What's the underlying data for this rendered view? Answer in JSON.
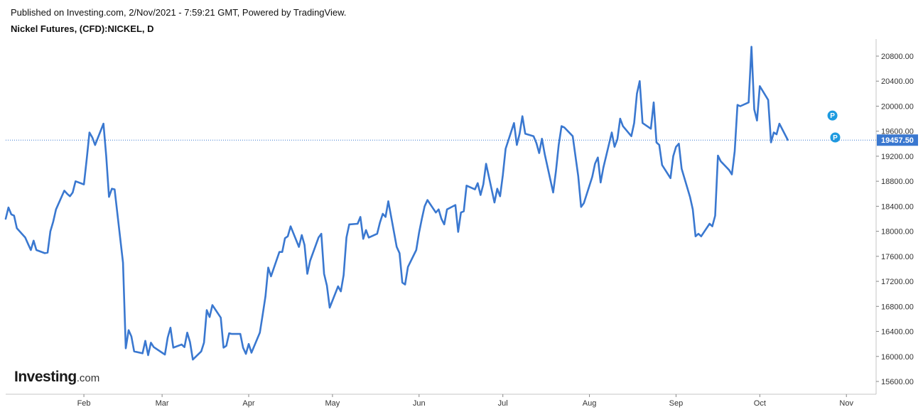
{
  "header": {
    "published": "Published on Investing.com, 2/Nov/2021 - 7:59:21 GMT, Powered by TradingView.",
    "symbol": "Nickel Futures, (CFD):NICKEL, D"
  },
  "logo": {
    "brand": "Investing",
    "suffix": ".com"
  },
  "colors": {
    "line": "#3a78d0",
    "price_label_bg": "#3a78d0",
    "marker": "#1e9be0",
    "axis": "#c4c4c4"
  },
  "chart_data": {
    "type": "line",
    "title": "Nickel Futures, (CFD):NICKEL, D",
    "xlabel": "",
    "ylabel": "",
    "ylim": [
      15400,
      21100
    ],
    "y_ticks": [
      15600,
      16000,
      16400,
      16800,
      17200,
      17600,
      18000,
      18400,
      18800,
      19200,
      19600,
      20000,
      20400,
      20800
    ],
    "y_tick_labels": [
      "15600.00",
      "16000.00",
      "16400.00",
      "16800.00",
      "17200.00",
      "17600.00",
      "18000.00",
      "18400.00",
      "18800.00",
      "19200.00",
      "19600.00",
      "20000.00",
      "20400.00",
      "20800.00"
    ],
    "x_ticks": [
      "2021-02-01",
      "2021-03-01",
      "2021-04-01",
      "2021-05-01",
      "2021-06-01",
      "2021-07-01",
      "2021-08-01",
      "2021-09-01",
      "2021-10-01",
      "2021-11-01"
    ],
    "x_tick_labels": [
      "Feb",
      "Mar",
      "Apr",
      "May",
      "Jun",
      "Jul",
      "Aug",
      "Sep",
      "Oct",
      "Nov"
    ],
    "x_range": [
      "2021-01-04",
      "2021-11-04"
    ],
    "last_price": 19457.5,
    "last_price_label": "19457.50",
    "markers": [
      {
        "date": "2021-10-27",
        "value": 19850,
        "label": "P"
      },
      {
        "date": "2021-10-28",
        "value": 19500,
        "label": "P"
      }
    ],
    "series": [
      {
        "values": [
          [
            "2021-01-04",
            18200
          ],
          [
            "2021-01-05",
            18380
          ],
          [
            "2021-01-06",
            18270
          ],
          [
            "2021-01-07",
            18250
          ],
          [
            "2021-01-08",
            18050
          ],
          [
            "2021-01-11",
            17900
          ],
          [
            "2021-01-12",
            17800
          ],
          [
            "2021-01-13",
            17700
          ],
          [
            "2021-01-14",
            17850
          ],
          [
            "2021-01-15",
            17700
          ],
          [
            "2021-01-18",
            17650
          ],
          [
            "2021-01-19",
            17660
          ],
          [
            "2021-01-20",
            18000
          ],
          [
            "2021-01-21",
            18150
          ],
          [
            "2021-01-22",
            18350
          ],
          [
            "2021-01-25",
            18650
          ],
          [
            "2021-01-26",
            18600
          ],
          [
            "2021-01-27",
            18560
          ],
          [
            "2021-01-28",
            18620
          ],
          [
            "2021-01-29",
            18800
          ],
          [
            "2021-02-01",
            18750
          ],
          [
            "2021-02-02",
            19150
          ],
          [
            "2021-02-03",
            19580
          ],
          [
            "2021-02-04",
            19500
          ],
          [
            "2021-02-05",
            19380
          ],
          [
            "2021-02-08",
            19720
          ],
          [
            "2021-02-09",
            19200
          ],
          [
            "2021-02-10",
            18550
          ],
          [
            "2021-02-11",
            18680
          ],
          [
            "2021-02-12",
            18670
          ],
          [
            "2021-02-15",
            17500
          ],
          [
            "2021-02-16",
            16130
          ],
          [
            "2021-02-17",
            16420
          ],
          [
            "2021-02-18",
            16320
          ],
          [
            "2021-02-19",
            16080
          ],
          [
            "2021-02-22",
            16050
          ],
          [
            "2021-02-23",
            16250
          ],
          [
            "2021-02-24",
            16020
          ],
          [
            "2021-02-25",
            16220
          ],
          [
            "2021-02-26",
            16150
          ],
          [
            "2021-03-01",
            16060
          ],
          [
            "2021-03-02",
            16030
          ],
          [
            "2021-03-03",
            16300
          ],
          [
            "2021-03-04",
            16460
          ],
          [
            "2021-03-05",
            16140
          ],
          [
            "2021-03-08",
            16190
          ],
          [
            "2021-03-09",
            16150
          ],
          [
            "2021-03-10",
            16380
          ],
          [
            "2021-03-11",
            16230
          ],
          [
            "2021-03-12",
            15950
          ],
          [
            "2021-03-15",
            16080
          ],
          [
            "2021-03-16",
            16220
          ],
          [
            "2021-03-17",
            16740
          ],
          [
            "2021-03-18",
            16630
          ],
          [
            "2021-03-19",
            16820
          ],
          [
            "2021-03-22",
            16620
          ],
          [
            "2021-03-23",
            16140
          ],
          [
            "2021-03-24",
            16170
          ],
          [
            "2021-03-25",
            16370
          ],
          [
            "2021-03-26",
            16360
          ],
          [
            "2021-03-29",
            16360
          ],
          [
            "2021-03-30",
            16140
          ],
          [
            "2021-03-31",
            16040
          ],
          [
            "2021-04-01",
            16200
          ],
          [
            "2021-04-02",
            16060
          ],
          [
            "2021-04-05",
            16380
          ],
          [
            "2021-04-06",
            16660
          ],
          [
            "2021-04-07",
            16960
          ],
          [
            "2021-04-08",
            17420
          ],
          [
            "2021-04-09",
            17280
          ],
          [
            "2021-04-12",
            17670
          ],
          [
            "2021-04-13",
            17670
          ],
          [
            "2021-04-14",
            17890
          ],
          [
            "2021-04-15",
            17920
          ],
          [
            "2021-04-16",
            18080
          ],
          [
            "2021-04-19",
            17750
          ],
          [
            "2021-04-20",
            17940
          ],
          [
            "2021-04-21",
            17780
          ],
          [
            "2021-04-22",
            17320
          ],
          [
            "2021-04-23",
            17530
          ],
          [
            "2021-04-26",
            17900
          ],
          [
            "2021-04-27",
            17960
          ],
          [
            "2021-04-28",
            17320
          ],
          [
            "2021-04-29",
            17130
          ],
          [
            "2021-04-30",
            16780
          ],
          [
            "2021-05-03",
            17120
          ],
          [
            "2021-05-04",
            17040
          ],
          [
            "2021-05-05",
            17300
          ],
          [
            "2021-05-06",
            17900
          ],
          [
            "2021-05-07",
            18110
          ],
          [
            "2021-05-10",
            18120
          ],
          [
            "2021-05-11",
            18230
          ],
          [
            "2021-05-12",
            17880
          ],
          [
            "2021-05-13",
            18020
          ],
          [
            "2021-05-14",
            17900
          ],
          [
            "2021-05-17",
            17960
          ],
          [
            "2021-05-18",
            18140
          ],
          [
            "2021-05-19",
            18280
          ],
          [
            "2021-05-20",
            18230
          ],
          [
            "2021-05-21",
            18480
          ],
          [
            "2021-05-24",
            17750
          ],
          [
            "2021-05-25",
            17650
          ],
          [
            "2021-05-26",
            17180
          ],
          [
            "2021-05-27",
            17150
          ],
          [
            "2021-05-28",
            17430
          ],
          [
            "2021-05-31",
            17700
          ],
          [
            "2021-06-01",
            17980
          ],
          [
            "2021-06-02",
            18200
          ],
          [
            "2021-06-03",
            18400
          ],
          [
            "2021-06-04",
            18500
          ],
          [
            "2021-06-07",
            18300
          ],
          [
            "2021-06-08",
            18350
          ],
          [
            "2021-06-09",
            18200
          ],
          [
            "2021-06-10",
            18110
          ],
          [
            "2021-06-11",
            18350
          ],
          [
            "2021-06-14",
            18420
          ],
          [
            "2021-06-15",
            17990
          ],
          [
            "2021-06-16",
            18300
          ],
          [
            "2021-06-17",
            18320
          ],
          [
            "2021-06-18",
            18730
          ],
          [
            "2021-06-21",
            18670
          ],
          [
            "2021-06-22",
            18770
          ],
          [
            "2021-06-23",
            18580
          ],
          [
            "2021-06-24",
            18750
          ],
          [
            "2021-06-25",
            19080
          ],
          [
            "2021-06-28",
            18460
          ],
          [
            "2021-06-29",
            18680
          ],
          [
            "2021-06-30",
            18560
          ],
          [
            "2021-07-01",
            18900
          ],
          [
            "2021-07-02",
            19320
          ],
          [
            "2021-07-05",
            19730
          ],
          [
            "2021-07-06",
            19380
          ],
          [
            "2021-07-07",
            19560
          ],
          [
            "2021-07-08",
            19840
          ],
          [
            "2021-07-09",
            19560
          ],
          [
            "2021-07-12",
            19520
          ],
          [
            "2021-07-13",
            19410
          ],
          [
            "2021-07-14",
            19250
          ],
          [
            "2021-07-15",
            19480
          ],
          [
            "2021-07-16",
            19230
          ],
          [
            "2021-07-19",
            18620
          ],
          [
            "2021-07-20",
            18960
          ],
          [
            "2021-07-21",
            19380
          ],
          [
            "2021-07-22",
            19680
          ],
          [
            "2021-07-23",
            19660
          ],
          [
            "2021-07-26",
            19520
          ],
          [
            "2021-07-27",
            19200
          ],
          [
            "2021-07-28",
            18880
          ],
          [
            "2021-07-29",
            18390
          ],
          [
            "2021-07-30",
            18450
          ],
          [
            "2021-08-02",
            18870
          ],
          [
            "2021-08-03",
            19080
          ],
          [
            "2021-08-04",
            19180
          ],
          [
            "2021-08-05",
            18780
          ],
          [
            "2021-08-06",
            19020
          ],
          [
            "2021-08-09",
            19580
          ],
          [
            "2021-08-10",
            19350
          ],
          [
            "2021-08-11",
            19470
          ],
          [
            "2021-08-12",
            19800
          ],
          [
            "2021-08-13",
            19680
          ],
          [
            "2021-08-16",
            19520
          ],
          [
            "2021-08-17",
            19730
          ],
          [
            "2021-08-18",
            20200
          ],
          [
            "2021-08-19",
            20400
          ],
          [
            "2021-08-20",
            19730
          ],
          [
            "2021-08-23",
            19640
          ],
          [
            "2021-08-24",
            20060
          ],
          [
            "2021-08-25",
            19420
          ],
          [
            "2021-08-26",
            19380
          ],
          [
            "2021-08-27",
            19060
          ],
          [
            "2021-08-30",
            18850
          ],
          [
            "2021-08-31",
            19200
          ],
          [
            "2021-09-01",
            19350
          ],
          [
            "2021-09-02",
            19400
          ],
          [
            "2021-09-03",
            19000
          ],
          [
            "2021-09-06",
            18550
          ],
          [
            "2021-09-07",
            18350
          ],
          [
            "2021-09-08",
            17920
          ],
          [
            "2021-09-09",
            17960
          ],
          [
            "2021-09-10",
            17920
          ],
          [
            "2021-09-13",
            18120
          ],
          [
            "2021-09-14",
            18080
          ],
          [
            "2021-09-15",
            18250
          ],
          [
            "2021-09-16",
            19210
          ],
          [
            "2021-09-17",
            19120
          ],
          [
            "2021-09-20",
            18980
          ],
          [
            "2021-09-21",
            18910
          ],
          [
            "2021-09-22",
            19280
          ],
          [
            "2021-09-23",
            20020
          ],
          [
            "2021-09-24",
            20000
          ],
          [
            "2021-09-27",
            20060
          ],
          [
            "2021-09-28",
            20950
          ],
          [
            "2021-09-29",
            19950
          ],
          [
            "2021-09-30",
            19770
          ],
          [
            "2021-10-01",
            20320
          ],
          [
            "2021-10-04",
            20100
          ],
          [
            "2021-10-05",
            19420
          ],
          [
            "2021-10-06",
            19580
          ],
          [
            "2021-10-07",
            19550
          ],
          [
            "2021-10-08",
            19720
          ],
          [
            "2021-10-11",
            19460
          ]
        ]
      }
    ]
  }
}
